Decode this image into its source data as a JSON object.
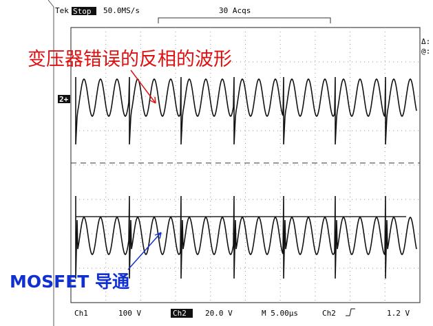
{
  "header": {
    "brand": "Tek",
    "status": "Stop",
    "sample_rate": "50.0MS/s",
    "acquisitions": "30 Acqs"
  },
  "right_readout": [
    "Δ:",
    "@:"
  ],
  "channel_marker": "2+",
  "annotations": {
    "top": "变压器错误的反相的波形",
    "bottom": "MOSFET 导通"
  },
  "footer": {
    "ch1_label": "Ch1",
    "ch1_scale": "100 V",
    "ch2_label": "Ch2",
    "ch2_scale": "20.0 V",
    "timebase": "M 5.00μs",
    "trigger_source": "Ch2",
    "trigger_level": "1.2 V"
  }
}
